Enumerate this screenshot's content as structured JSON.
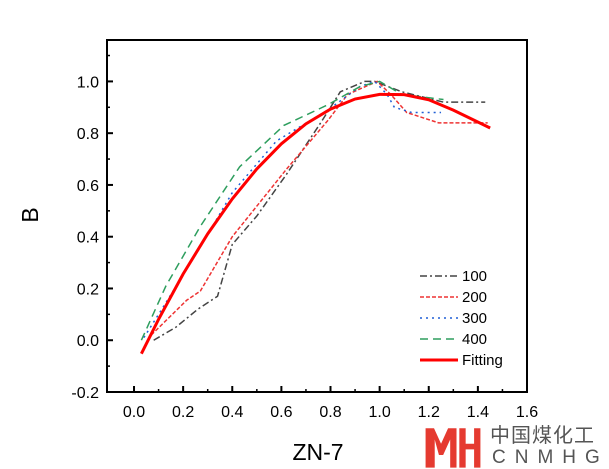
{
  "chart_data": {
    "type": "line",
    "title": "",
    "xlabel": "ZN-7",
    "ylabel": "B",
    "xlim": [
      -0.11,
      1.6
    ],
    "ylim": [
      -0.2,
      1.16
    ],
    "xticks": [
      "0.0",
      "0.2",
      "0.4",
      "0.6",
      "0.8",
      "1.0",
      "1.2",
      "1.4",
      "1.6"
    ],
    "yticks": [
      "-0.2",
      "0.0",
      "0.2",
      "0.4",
      "0.6",
      "0.8",
      "1.0"
    ],
    "grid": false,
    "legend_position": "bottom-right",
    "series": [
      {
        "name": "100",
        "color": "#444444",
        "style": "dashdot",
        "x": [
          0.08,
          0.17,
          0.26,
          0.34,
          0.4,
          0.5,
          0.62,
          0.76,
          0.84,
          0.94,
          0.98,
          1.09,
          1.26,
          1.43
        ],
        "y": [
          0.0,
          0.05,
          0.12,
          0.17,
          0.37,
          0.48,
          0.64,
          0.84,
          0.96,
          1.0,
          1.0,
          0.96,
          0.92,
          0.92
        ]
      },
      {
        "name": "200",
        "color": "#ee3333",
        "style": "shortdash",
        "x": [
          0.07,
          0.215,
          0.27,
          0.4,
          0.51,
          0.62,
          0.79,
          0.87,
          0.99,
          1.045,
          1.11,
          1.24,
          1.44
        ],
        "y": [
          0.02,
          0.155,
          0.19,
          0.4,
          0.53,
          0.66,
          0.85,
          0.95,
          1.0,
          0.95,
          0.88,
          0.84,
          0.84
        ]
      },
      {
        "name": "300",
        "color": "#1f5fd6",
        "style": "dot",
        "x": [
          0.04,
          0.12,
          0.27,
          0.4,
          0.58,
          0.79,
          0.92,
          0.98,
          1.03,
          1.06,
          1.13,
          1.25
        ],
        "y": [
          0.01,
          0.13,
          0.36,
          0.57,
          0.77,
          0.89,
          0.98,
          1.0,
          0.95,
          0.9,
          0.88,
          0.88
        ]
      },
      {
        "name": "400",
        "color": "#2e9e5e",
        "style": "dash",
        "x": [
          0.03,
          0.13,
          0.27,
          0.43,
          0.61,
          0.79,
          0.92,
          1.0,
          1.09,
          1.26
        ],
        "y": [
          0.0,
          0.21,
          0.44,
          0.67,
          0.83,
          0.91,
          0.98,
          1.0,
          0.95,
          0.93
        ]
      },
      {
        "name": "Fitting",
        "color": "#ff0000",
        "style": "solid",
        "x": [
          0.03,
          0.1,
          0.2,
          0.3,
          0.4,
          0.5,
          0.6,
          0.7,
          0.8,
          0.9,
          1.0,
          1.1,
          1.2,
          1.3,
          1.45
        ],
        "y": [
          -0.052,
          0.081,
          0.256,
          0.411,
          0.546,
          0.662,
          0.759,
          0.836,
          0.893,
          0.932,
          0.95,
          0.949,
          0.929,
          0.889,
          0.82
        ]
      }
    ]
  },
  "logo": {
    "cn": "中国煤化工",
    "en": "CNMHG",
    "mark": "MH"
  }
}
